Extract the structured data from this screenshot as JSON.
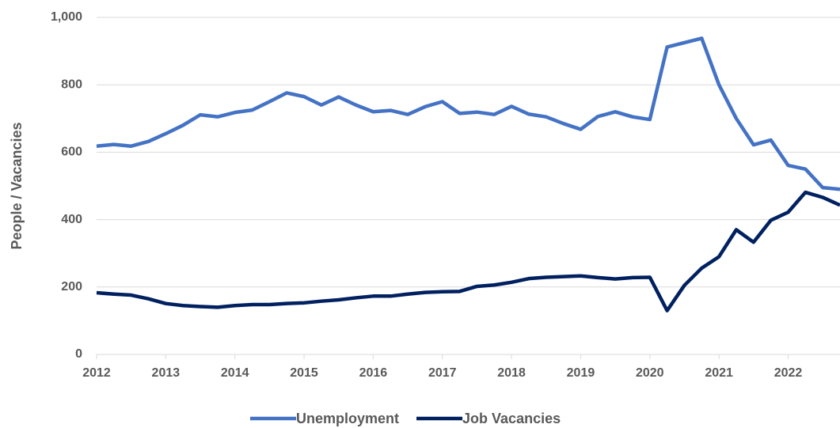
{
  "chart_data": {
    "type": "line",
    "y_label": "People / Vacancies",
    "x": [
      2012,
      2012.25,
      2012.5,
      2012.75,
      2013,
      2013.25,
      2013.5,
      2013.75,
      2014,
      2014.25,
      2014.5,
      2014.75,
      2015,
      2015.25,
      2015.5,
      2015.75,
      2016,
      2016.25,
      2016.5,
      2016.75,
      2017,
      2017.25,
      2017.5,
      2017.75,
      2018,
      2018.25,
      2018.5,
      2018.75,
      2019,
      2019.25,
      2019.5,
      2019.75,
      2020,
      2020.25,
      2020.5,
      2020.75,
      2021,
      2021.25,
      2021.5,
      2021.75,
      2022,
      2022.25,
      2022.5,
      2022.75
    ],
    "series": [
      {
        "name": "Unemployment",
        "color": "#4472c4",
        "values": [
          618,
          623,
          618,
          632,
          655,
          680,
          711,
          705,
          718,
          725,
          750,
          776,
          765,
          740,
          764,
          740,
          720,
          724,
          712,
          735,
          750,
          715,
          719,
          712,
          736,
          713,
          705,
          685,
          668,
          706,
          720,
          705,
          697,
          912,
          925,
          938,
          800,
          700,
          622,
          636,
          561,
          550,
          495,
          490
        ]
      },
      {
        "name": "Job Vacancies",
        "color": "#002060",
        "values": [
          183,
          179,
          176,
          165,
          151,
          145,
          142,
          140,
          145,
          148,
          148,
          151,
          153,
          158,
          162,
          168,
          173,
          173,
          179,
          184,
          186,
          187,
          202,
          206,
          214,
          225,
          229,
          231,
          233,
          228,
          224,
          228,
          229,
          130,
          205,
          256,
          290,
          370,
          333,
          398,
          422,
          481,
          466,
          443
        ]
      }
    ],
    "xlim": [
      2012,
      2022.75
    ],
    "xticks": [
      2012,
      2013,
      2014,
      2015,
      2016,
      2017,
      2018,
      2019,
      2020,
      2021,
      2022
    ],
    "ylim": [
      0,
      1000
    ],
    "yticks": [
      0,
      200,
      400,
      600,
      800,
      {
        "value": 1000,
        "label": "1,000"
      }
    ],
    "grid": true,
    "legend": "bottom"
  }
}
